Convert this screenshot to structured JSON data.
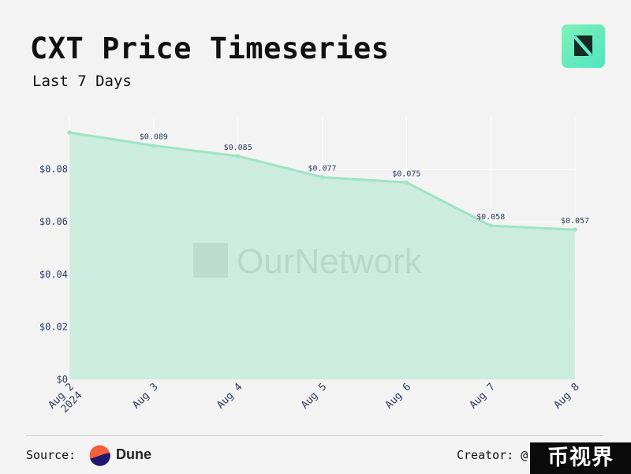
{
  "header": {
    "title": "CXT Price Timeseries",
    "subtitle": "Last 7 Days"
  },
  "watermark": "OurNetwork",
  "footer": {
    "source_label": "Source:",
    "source_name": "Dune",
    "creator_label": "Creator: @",
    "stamp_text": "币视界"
  },
  "colors": {
    "area_fill": "#c8ecdc",
    "line": "#9fe3c6",
    "accent": "#5eead0",
    "dune_orange": "#f4603e",
    "dune_navy": "#1e1870"
  },
  "chart_data": {
    "type": "area",
    "x": [
      "Aug 2\n2024",
      "Aug 3",
      "Aug 4",
      "Aug 5",
      "Aug 6",
      "Aug 7",
      "Aug 8"
    ],
    "series": [
      {
        "values": [
          0.094,
          0.089,
          0.085,
          0.077,
          0.075,
          0.0585,
          0.057
        ],
        "labels": [
          "",
          "$0.089",
          "$0.085",
          "$0.077",
          "$0.075",
          "$0.058",
          "$0.057"
        ]
      }
    ],
    "y_ticks": [
      0,
      0.02,
      0.04,
      0.06,
      0.08
    ],
    "y_tick_labels": [
      "$0",
      "$0.02",
      "$0.04",
      "$0.06",
      "$0.08"
    ],
    "ylim": [
      0,
      0.1
    ],
    "grid": true
  }
}
